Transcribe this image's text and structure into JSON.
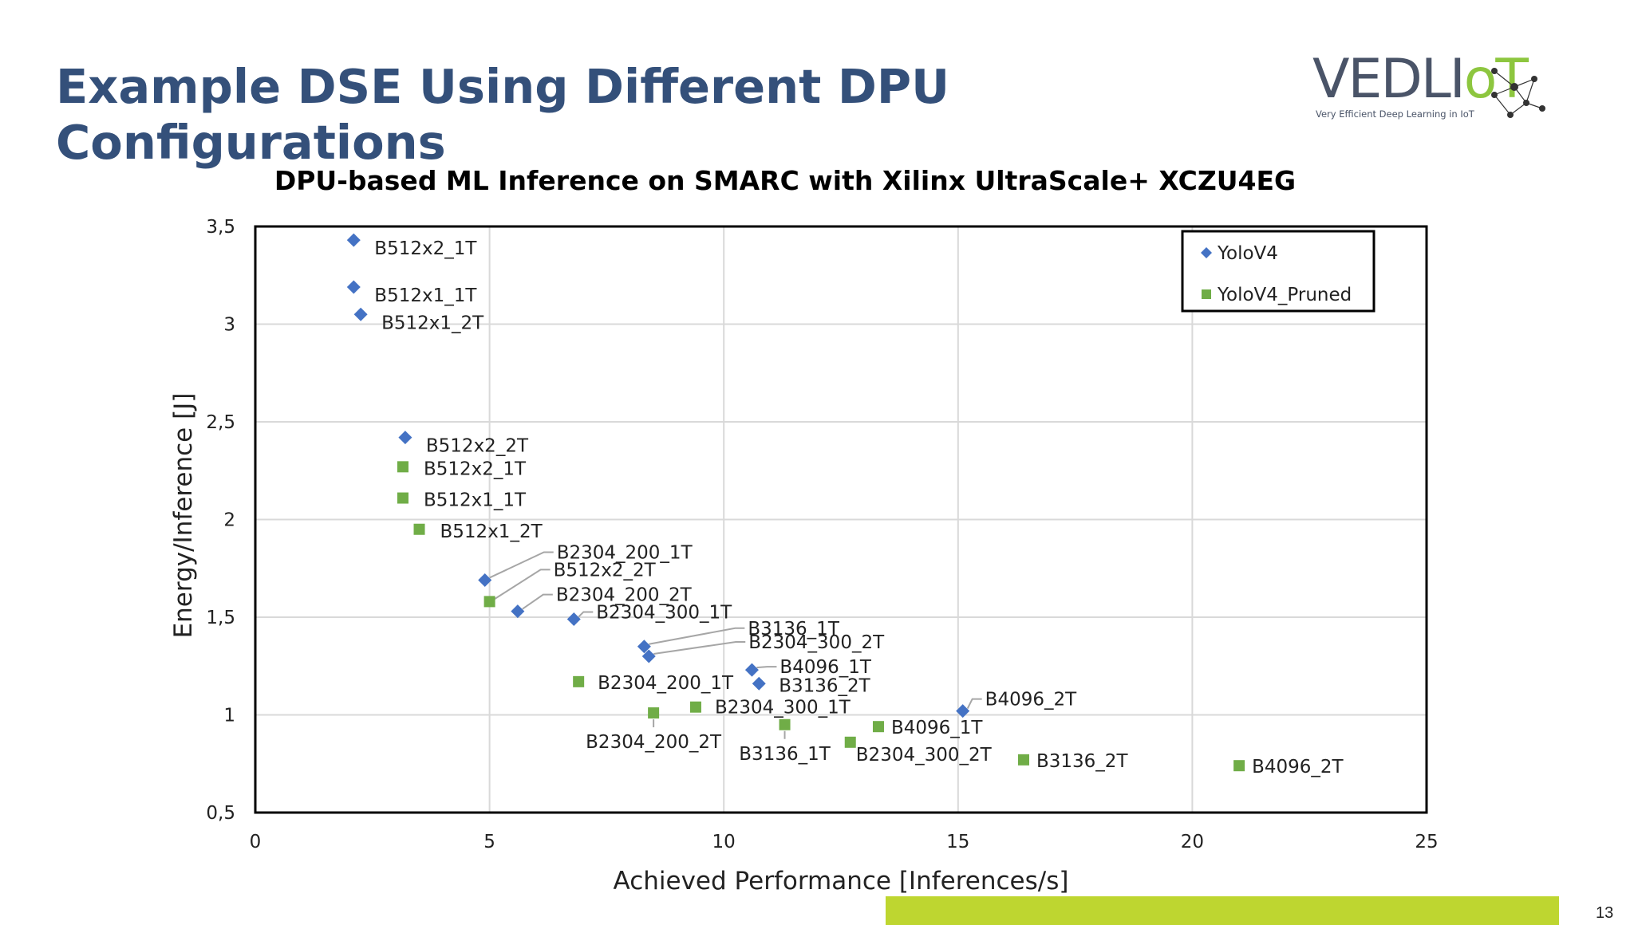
{
  "slide": {
    "title": "Example DSE Using Different DPU Configurations",
    "page_number": "13"
  },
  "logo": {
    "word_main": "VEDLI",
    "word_accent": "oT",
    "tagline": "Very Efficient Deep Learning in IoT"
  },
  "colors": {
    "title": "#34507A",
    "yolov4": "#4472C4",
    "yolov4_pruned": "#70AD47",
    "accent_bar": "#BED630"
  },
  "chart_data": {
    "type": "scatter",
    "title": "DPU-based ML Inference on SMARC with Xilinx UltraScale+ XCZU4EG",
    "xlabel": "Achieved Performance [Inferences/s]",
    "ylabel": "Energy/Inference [J]",
    "xlim": [
      0,
      25
    ],
    "ylim": [
      0.5,
      3.5
    ],
    "xticks": [
      "0",
      "5",
      "10",
      "15",
      "20",
      "25"
    ],
    "yticks": [
      "0,5",
      "1",
      "1,5",
      "2",
      "2,5",
      "3",
      "3,5"
    ],
    "grid": true,
    "legend": "top-right",
    "series": [
      {
        "name": "YoloV4",
        "marker": "diamond",
        "points": [
          {
            "x": 2.1,
            "y": 3.43,
            "label": "B512x2_1T"
          },
          {
            "x": 2.1,
            "y": 3.19,
            "label": "B512x1_1T"
          },
          {
            "x": 2.25,
            "y": 3.05,
            "label": "B512x1_2T"
          },
          {
            "x": 3.2,
            "y": 2.42,
            "label": "B512x2_2T"
          },
          {
            "x": 4.9,
            "y": 1.69,
            "label": "B2304_200_1T"
          },
          {
            "x": 5.6,
            "y": 1.53,
            "label": "B2304_200_2T"
          },
          {
            "x": 6.8,
            "y": 1.49,
            "label": "B2304_300_1T"
          },
          {
            "x": 8.3,
            "y": 1.35,
            "label": "B3136_1T"
          },
          {
            "x": 8.4,
            "y": 1.3,
            "label": "B2304_300_2T"
          },
          {
            "x": 10.6,
            "y": 1.23,
            "label": "B4096_1T"
          },
          {
            "x": 10.75,
            "y": 1.16,
            "label": "B3136_2T"
          },
          {
            "x": 15.1,
            "y": 1.02,
            "label": "B4096_2T"
          }
        ]
      },
      {
        "name": "YoloV4_Pruned",
        "marker": "square",
        "points": [
          {
            "x": 3.15,
            "y": 2.27,
            "label": "B512x2_1T"
          },
          {
            "x": 3.15,
            "y": 2.11,
            "label": "B512x1_1T"
          },
          {
            "x": 3.5,
            "y": 1.95,
            "label": "B512x1_2T"
          },
          {
            "x": 5.0,
            "y": 1.58,
            "label": "B512x2_2T"
          },
          {
            "x": 6.9,
            "y": 1.17,
            "label": "B2304_200_1T"
          },
          {
            "x": 8.5,
            "y": 1.01,
            "label": "B2304_200_2T"
          },
          {
            "x": 9.4,
            "y": 1.04,
            "label": "B2304_300_1T"
          },
          {
            "x": 11.3,
            "y": 0.95,
            "label": "B3136_1T"
          },
          {
            "x": 12.7,
            "y": 0.86,
            "label": "B2304_300_2T"
          },
          {
            "x": 13.3,
            "y": 0.94,
            "label": "B4096_1T"
          },
          {
            "x": 16.4,
            "y": 0.77,
            "label": "B3136_2T"
          },
          {
            "x": 21.0,
            "y": 0.74,
            "label": "B4096_2T"
          }
        ]
      }
    ]
  }
}
